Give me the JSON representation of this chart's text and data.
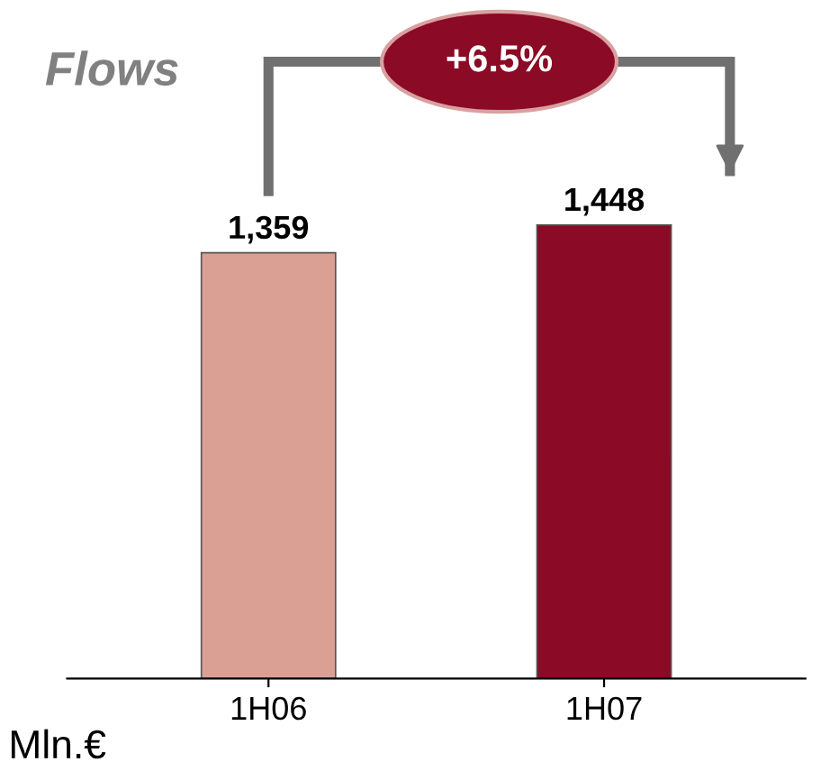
{
  "chart_data": {
    "type": "bar",
    "title": "Flows",
    "categories": [
      "1H06",
      "1H07"
    ],
    "values": [
      1359,
      1448
    ],
    "colors": [
      "#dba094",
      "#8b0a25"
    ],
    "value_labels": [
      "1,359",
      "1,448"
    ],
    "annotations": [
      "+6.5%",
      "Mln.€"
    ],
    "grid": false,
    "tick_labels": "x"
  }
}
